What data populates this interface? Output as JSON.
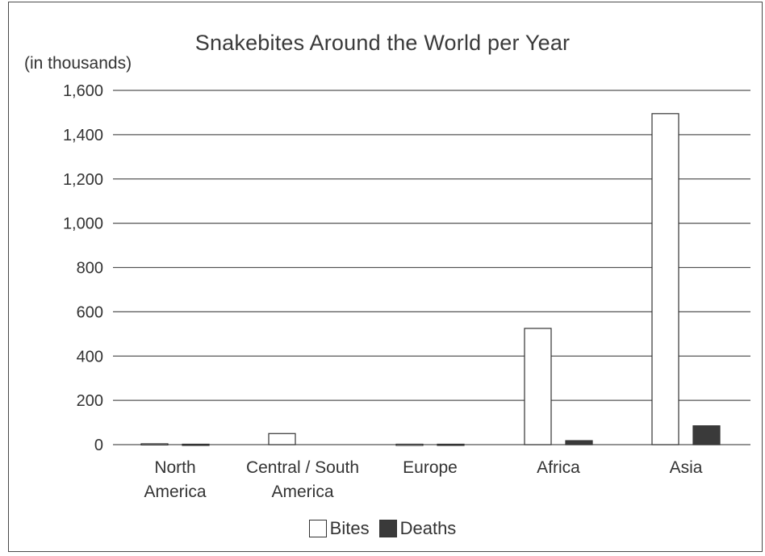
{
  "chart_data": {
    "type": "bar",
    "title": "Snakebites Around the World per Year",
    "ylabel": "(in thousands)",
    "xlabel": "",
    "categories": [
      [
        "North",
        "America"
      ],
      [
        "Central / South",
        "America"
      ],
      [
        "Europe"
      ],
      [
        "Africa"
      ],
      [
        "Asia"
      ]
    ],
    "series": [
      {
        "name": "Bites",
        "values": [
          4,
          50,
          2,
          525,
          1495
        ]
      },
      {
        "name": "Deaths",
        "values": [
          2,
          0,
          2,
          18,
          85
        ]
      }
    ],
    "ylim": [
      0,
      1600
    ],
    "yticks": [
      0,
      200,
      400,
      600,
      800,
      1000,
      1200,
      1400,
      1600
    ],
    "ytick_labels": [
      "0",
      "200",
      "400",
      "600",
      "800",
      "1,000",
      "1,200",
      "1,400",
      "1,600"
    ],
    "grid": true,
    "legend": "bottom-center",
    "colors": {
      "bites": "#ffffff",
      "deaths": "#3a3a3a",
      "grid": "#555555"
    }
  }
}
